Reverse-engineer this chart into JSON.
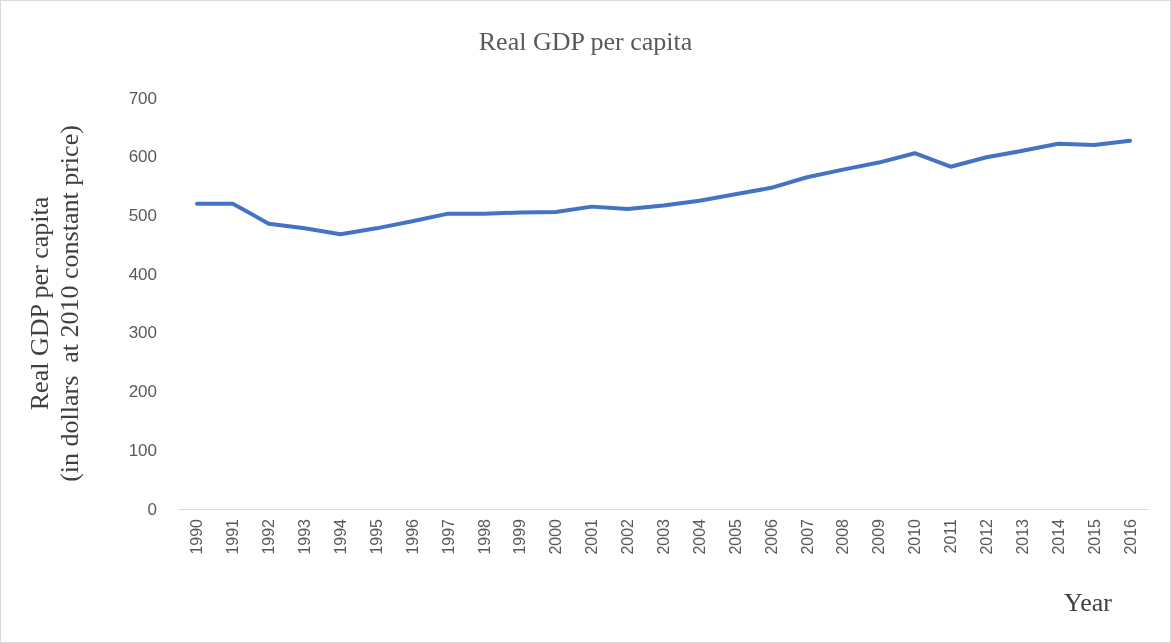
{
  "chart_data": {
    "type": "line",
    "title": "Real GDP per capita",
    "xlabel": "Year",
    "ylabel": "Real GDP per capita\n(in dollars  at 2010 constant price)",
    "categories": [
      "1990",
      "1991",
      "1992",
      "1993",
      "1994",
      "1995",
      "1996",
      "1997",
      "1998",
      "1999",
      "2000",
      "2001",
      "2002",
      "2003",
      "2004",
      "2005",
      "2006",
      "2007",
      "2008",
      "2009",
      "2010",
      "2011",
      "2012",
      "2013",
      "2014",
      "2015",
      "2016"
    ],
    "series": [
      {
        "color": "#4472c4",
        "values": [
          520,
          520,
          486,
          478,
          468,
          478,
          490,
          503,
          503,
          505,
          506,
          515,
          511,
          517,
          525,
          536,
          547,
          565,
          578,
          590,
          606,
          583,
          599,
          610,
          622,
          620,
          627
        ]
      }
    ],
    "ylim": [
      0,
      700
    ],
    "yticks": [
      0,
      100,
      200,
      300,
      400,
      500,
      600,
      700
    ],
    "marker": "none",
    "line_style": "solid"
  }
}
